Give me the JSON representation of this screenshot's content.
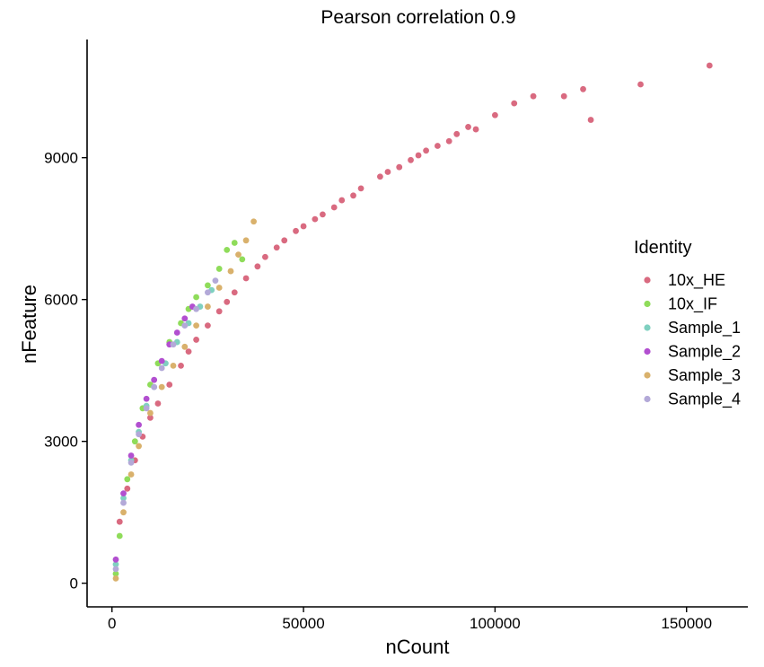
{
  "chart_data": {
    "type": "scatter",
    "title": "Pearson correlation 0.9",
    "xlabel": "nCount",
    "ylabel": "nFeature",
    "xlim": [
      -6500,
      166000
    ],
    "ylim": [
      -500,
      11500
    ],
    "x_ticks": [
      0,
      50000,
      100000,
      150000
    ],
    "y_ticks": [
      0,
      3000,
      6000,
      9000
    ],
    "x_tick_labels": [
      "0",
      "50000",
      "100000",
      "150000"
    ],
    "y_tick_labels": [
      "0",
      "3000",
      "6000",
      "9000"
    ],
    "grid": false,
    "legend": {
      "title": "Identity",
      "position": "right"
    },
    "series": [
      {
        "name": "10x_HE",
        "color": "#d96a80",
        "x": [
          2000,
          4000,
          6000,
          8000,
          10000,
          12000,
          15000,
          18000,
          20000,
          22000,
          25000,
          28000,
          30000,
          32000,
          35000,
          38000,
          40000,
          43000,
          45000,
          48000,
          50000,
          53000,
          55000,
          58000,
          60000,
          63000,
          65000,
          70000,
          72000,
          75000,
          78000,
          80000,
          82000,
          85000,
          88000,
          90000,
          93000,
          95000,
          100000,
          105000,
          110000,
          118000,
          123000,
          125000,
          138000,
          156000
        ],
        "y": [
          1300,
          2000,
          2600,
          3100,
          3500,
          3800,
          4200,
          4600,
          4900,
          5150,
          5450,
          5750,
          5950,
          6150,
          6450,
          6700,
          6900,
          7100,
          7250,
          7450,
          7550,
          7700,
          7800,
          7950,
          8100,
          8200,
          8350,
          8600,
          8700,
          8800,
          8950,
          9050,
          9150,
          9250,
          9350,
          9500,
          9650,
          9600,
          9900,
          10150,
          10300,
          10300,
          10450,
          9800,
          10550,
          10950
        ]
      },
      {
        "name": "10x_IF",
        "color": "#8fdc5a",
        "x": [
          1000,
          2000,
          4000,
          6000,
          8000,
          10000,
          12000,
          15000,
          18000,
          20000,
          22000,
          25000,
          28000,
          30000,
          32000,
          34000
        ],
        "y": [
          200,
          1000,
          2200,
          3000,
          3700,
          4200,
          4650,
          5100,
          5500,
          5800,
          6050,
          6300,
          6650,
          7050,
          7200,
          6850
        ]
      },
      {
        "name": "Sample_1",
        "color": "#7fd0c0",
        "x": [
          1000,
          3000,
          5000,
          7000,
          9000,
          11000,
          14000,
          17000,
          20000,
          23000,
          26000
        ],
        "y": [
          400,
          1800,
          2600,
          3200,
          3750,
          4150,
          4650,
          5100,
          5500,
          5850,
          6200
        ]
      },
      {
        "name": "Sample_2",
        "color": "#b24fd0",
        "x": [
          1000,
          3000,
          5000,
          7000,
          9000,
          11000,
          13000,
          15000,
          17000,
          19000,
          21000
        ],
        "y": [
          500,
          1900,
          2700,
          3350,
          3900,
          4300,
          4700,
          5050,
          5300,
          5600,
          5850
        ]
      },
      {
        "name": "Sample_3",
        "color": "#d9b16c",
        "x": [
          1000,
          3000,
          5000,
          7000,
          10000,
          13000,
          16000,
          19000,
          22000,
          25000,
          28000,
          31000,
          33000,
          35000,
          37000
        ],
        "y": [
          100,
          1500,
          2300,
          2900,
          3600,
          4150,
          4600,
          5000,
          5450,
          5850,
          6250,
          6600,
          6950,
          7250,
          7650
        ]
      },
      {
        "name": "Sample_4",
        "color": "#b3a9d8",
        "x": [
          1000,
          3000,
          5000,
          7000,
          9000,
          11000,
          13000,
          16000,
          19000,
          22000,
          25000,
          27000
        ],
        "y": [
          300,
          1700,
          2550,
          3150,
          3700,
          4150,
          4550,
          5050,
          5450,
          5800,
          6150,
          6400
        ]
      }
    ]
  }
}
